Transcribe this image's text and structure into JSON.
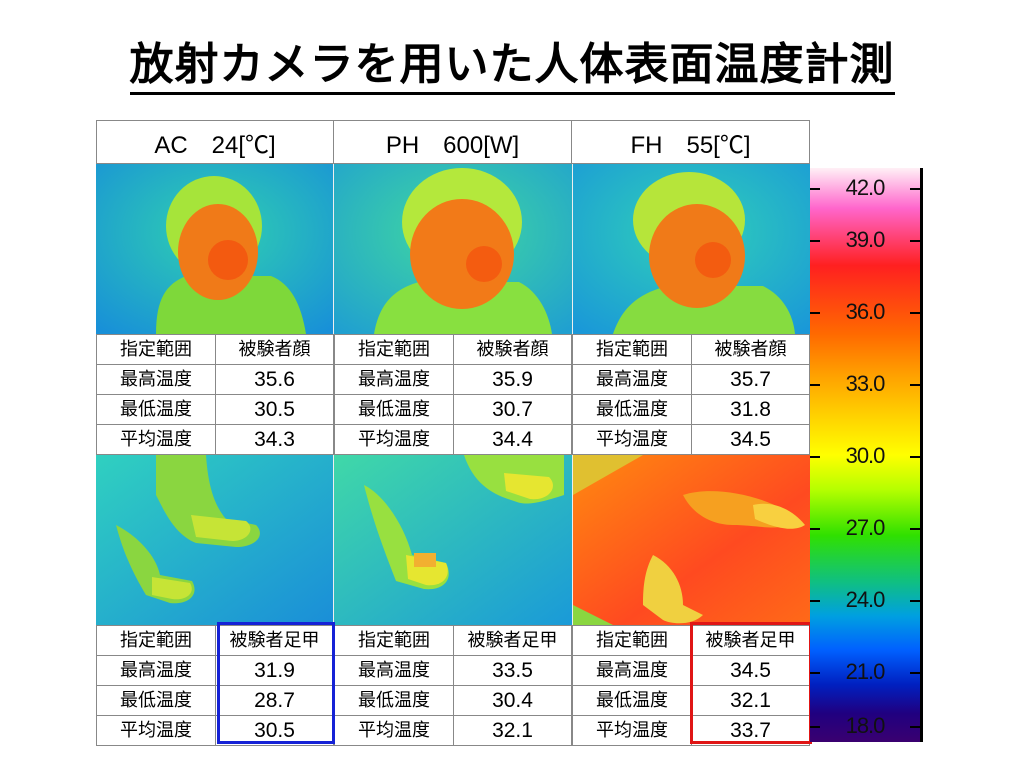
{
  "title": "放射カメラを用いた人体表面温度計測",
  "headers": [
    "AC　24[℃]",
    "PH　600[W]",
    "FH　55[℃]"
  ],
  "labels": {
    "range": "指定範囲",
    "max": "最高温度",
    "min": "最低温度",
    "avg": "平均温度"
  },
  "face": {
    "target": "被験者顔",
    "ac": {
      "max": "35.6",
      "min": "30.5",
      "avg": "34.3"
    },
    "ph": {
      "max": "35.9",
      "min": "30.7",
      "avg": "34.4"
    },
    "fh": {
      "max": "35.7",
      "min": "31.8",
      "avg": "34.5"
    }
  },
  "feet": {
    "target": "被験者足甲",
    "ac": {
      "max": "31.9",
      "min": "28.7",
      "avg": "30.5"
    },
    "ph": {
      "max": "33.5",
      "min": "30.4",
      "avg": "32.1"
    },
    "fh": {
      "max": "34.5",
      "min": "32.1",
      "avg": "33.7"
    }
  },
  "scale": [
    "42.0",
    "39.0",
    "36.0",
    "33.0",
    "30.0",
    "27.0",
    "24.0",
    "21.0",
    "18.0"
  ],
  "colors": {
    "blue_box": "#1522d6",
    "red_box": "#e01515"
  }
}
